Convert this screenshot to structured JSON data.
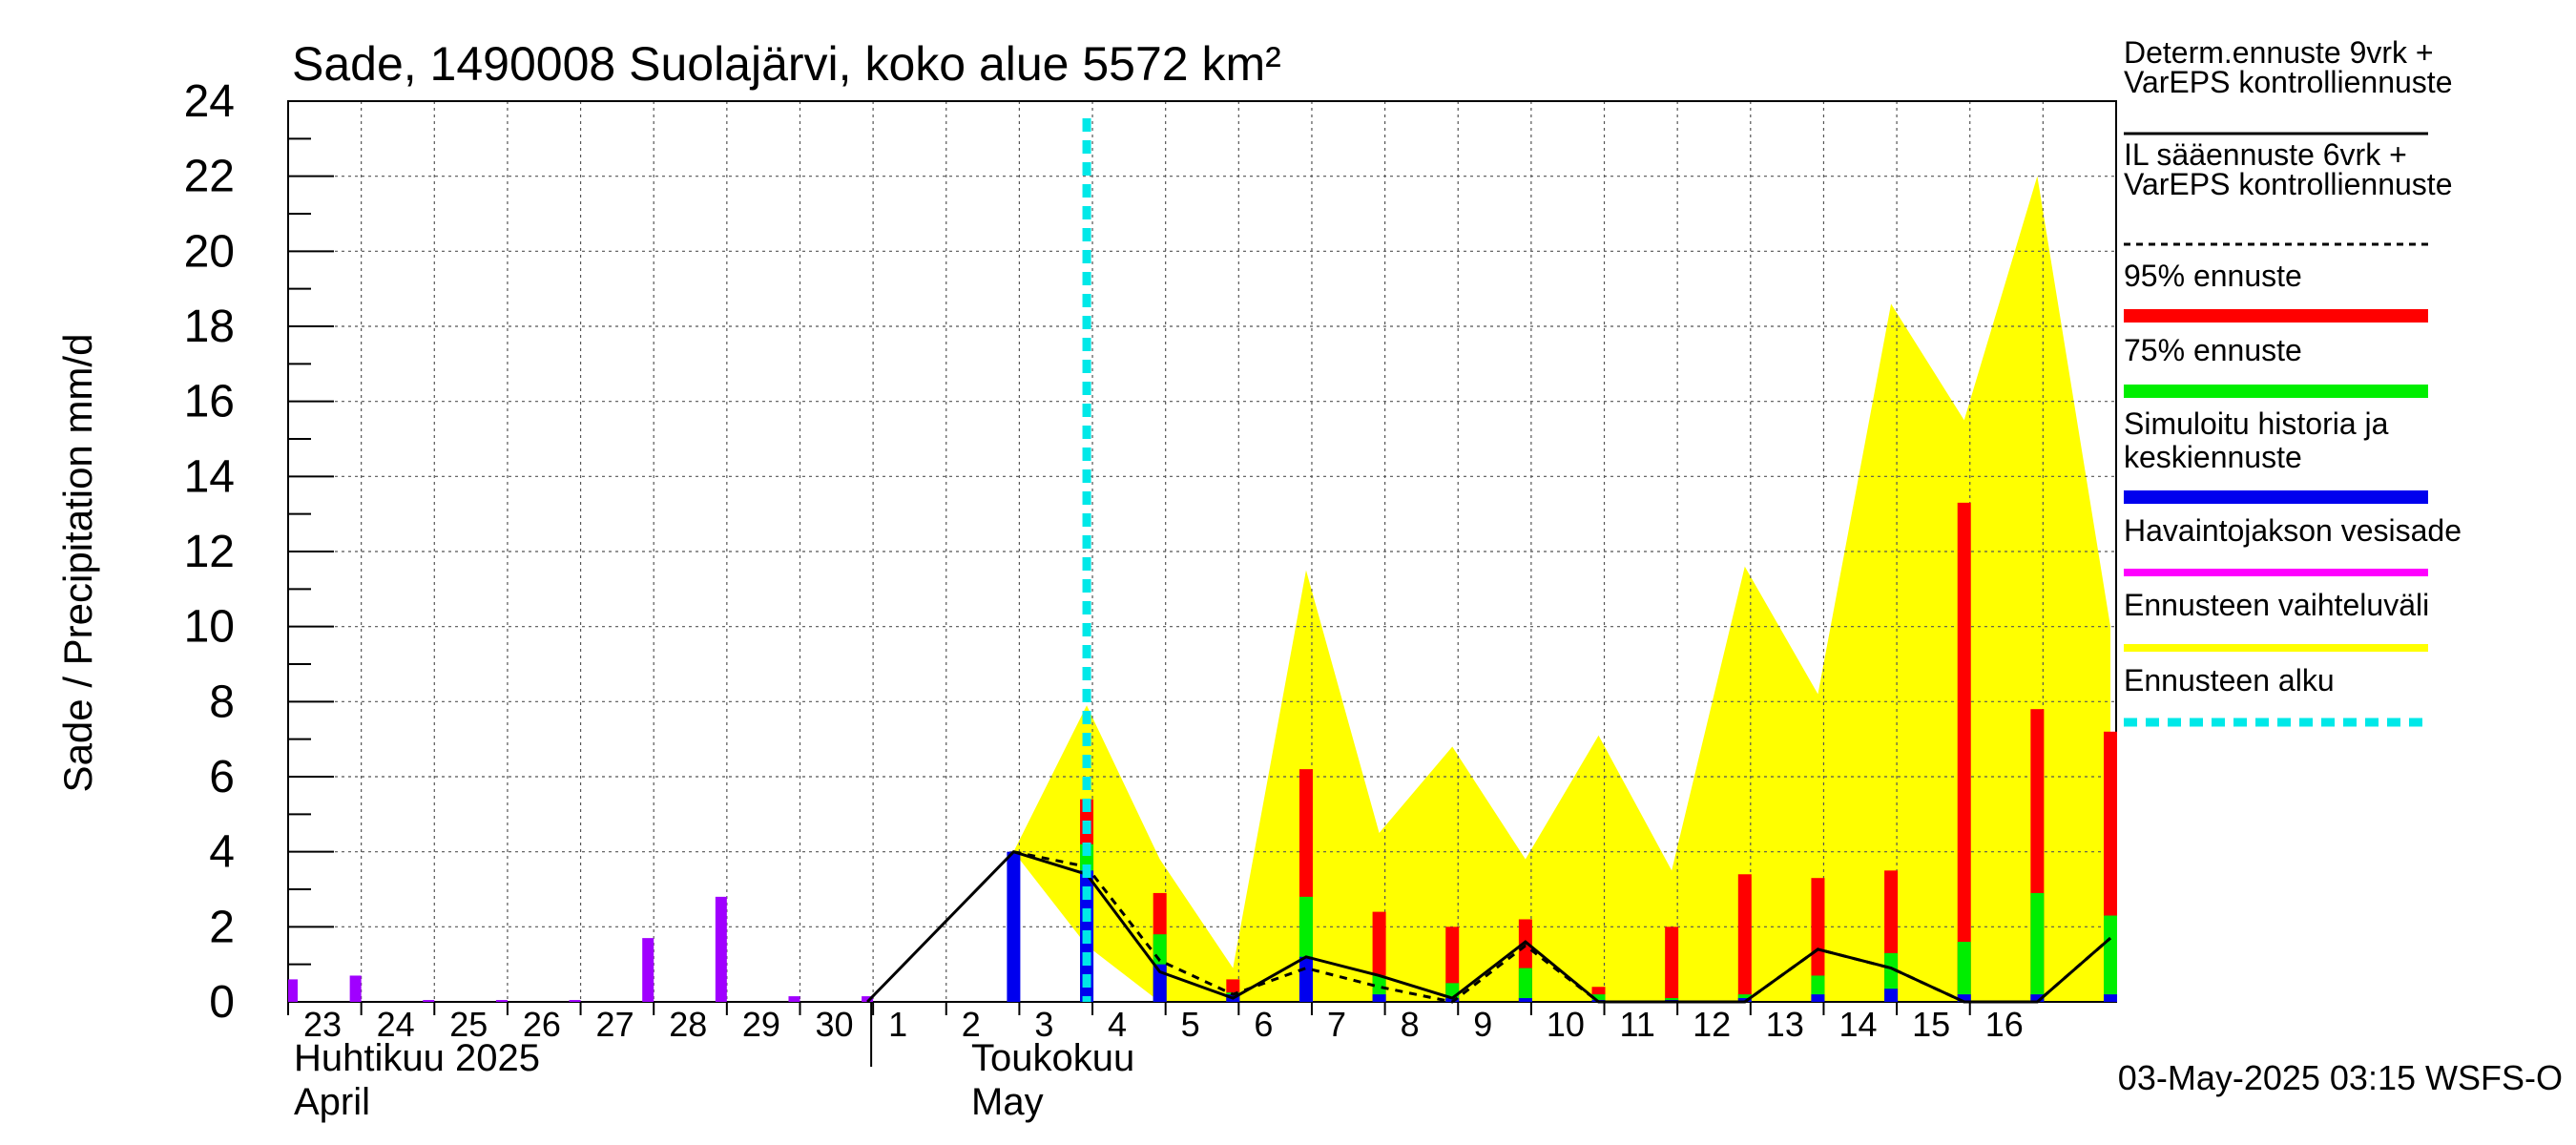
{
  "chart_data": {
    "type": "bar",
    "title": "Sade, 1490008 Suolajärvi, koko alue 5572 km²",
    "ylabel": "Sade / Precipitation   mm/d",
    "ylim": [
      0,
      24
    ],
    "yticks": [
      "0",
      "2",
      "4",
      "6",
      "8",
      "10",
      "12",
      "14",
      "16",
      "18",
      "20",
      "22",
      "24"
    ],
    "x_labels": [
      "23",
      "24",
      "25",
      "26",
      "27",
      "28",
      "29",
      "30",
      "1",
      "2",
      "3",
      "4",
      "5",
      "6",
      "7",
      "8",
      "9",
      "10",
      "11",
      "12",
      "13",
      "14",
      "15",
      "16"
    ],
    "month_labels": [
      {
        "fi": "Huhtikuu  2025",
        "en": "April"
      },
      {
        "fi": "Toukokuu",
        "en": "May"
      }
    ],
    "forecast_start_day": 10,
    "observed_precip": [
      0.6,
      0.7,
      0.05,
      0.05,
      0.05,
      1.7,
      2.8,
      0.15,
      0.15
    ],
    "forecast_days": [
      9,
      10,
      11,
      12,
      13,
      14,
      15,
      16,
      17,
      18,
      19,
      20,
      21,
      22,
      23,
      24
    ],
    "series": [
      {
        "name": "Simuloitu historia ja keskiennuste",
        "values": [
          4.0,
          3.5,
          1.0,
          0.2,
          1.2,
          0.2,
          0.1,
          0.1,
          0.05,
          0.05,
          0.1,
          0.2,
          0.35,
          0.2,
          0.2,
          0.2
        ]
      },
      {
        "name": "75% ennuste",
        "values": [
          null,
          4.2,
          1.8,
          0.25,
          2.8,
          0.7,
          0.5,
          0.9,
          0.2,
          0.1,
          0.2,
          0.7,
          1.3,
          1.6,
          2.9,
          2.3
        ]
      },
      {
        "name": "95% ennuste",
        "values": [
          null,
          5.4,
          2.9,
          0.6,
          6.2,
          2.4,
          2.0,
          2.2,
          0.4,
          2.0,
          3.4,
          3.3,
          3.5,
          13.3,
          7.8,
          7.2
        ]
      },
      {
        "name": "Determ.ennuste 9vrk + VarEPS kontrolliennuste",
        "style": "solid",
        "values": [
          4.0,
          3.4,
          0.8,
          0.1,
          1.2,
          0.7,
          0.1,
          1.6,
          0.0,
          0.0,
          0.0,
          1.4,
          0.9,
          0.0,
          0.0,
          1.7
        ]
      },
      {
        "name": "IL sääennuste 6vrk + VarEPS kontrolliennuste",
        "style": "dashed",
        "values": [
          4.0,
          3.6,
          1.1,
          0.2,
          0.9,
          0.4,
          0.0,
          1.5,
          0.0,
          0.0,
          0.0,
          1.4,
          0.9,
          0.0,
          0.0,
          1.7
        ]
      }
    ],
    "range_band": {
      "name": "Ennusteen vaihteluväli",
      "upper": [
        4.0,
        7.9,
        3.8,
        0.9,
        11.5,
        4.5,
        6.8,
        3.8,
        7.1,
        3.5,
        11.6,
        8.2,
        18.6,
        15.5,
        22.0,
        10.0
      ],
      "lower": [
        4.0,
        1.5,
        0.0,
        0.0,
        0.0,
        0.0,
        0.0,
        0.0,
        0.0,
        0.0,
        0.0,
        0.0,
        0.0,
        0.0,
        0.0,
        0.0
      ]
    },
    "legend": [
      {
        "label1": "Determ.ennuste 9vrk +",
        "label2": "VarEPS kontrolliennuste",
        "color": "#000000",
        "kind": "line"
      },
      {
        "label1": "IL sääennuste 6vrk  +",
        "label2": "  VarEPS kontrolliennuste",
        "color": "#000000",
        "kind": "dashed"
      },
      {
        "label1": "95% ennuste",
        "label2": "",
        "color": "#ff0000",
        "kind": "bar"
      },
      {
        "label1": "75% ennuste",
        "label2": "",
        "color": "#00ee00",
        "kind": "bar"
      },
      {
        "label1": "Simuloitu historia ja",
        "label2": "keskiennuste",
        "color": "#0000ee",
        "kind": "bar"
      },
      {
        "label1": "Havaintojakson vesisade",
        "label2": "",
        "color": "#ff00ff",
        "kind": "bar"
      },
      {
        "label1": "Ennusteen vaihteluväli",
        "label2": "",
        "color": "#ffff00",
        "kind": "bar"
      },
      {
        "label1": "Ennusteen alku",
        "label2": "",
        "color": "#00e8e8",
        "kind": "cyan"
      }
    ],
    "timestamp": "03-May-2025 03:15 WSFS-O"
  }
}
